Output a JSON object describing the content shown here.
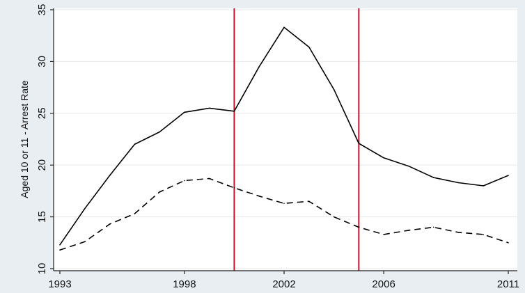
{
  "chart_data": {
    "type": "line",
    "title": "",
    "xlabel": "",
    "ylabel": "Aged 10 or 11 - Arrest Rate",
    "xlim": [
      1993,
      2011
    ],
    "ylim": [
      10,
      35
    ],
    "x_ticks": [
      1993,
      1998,
      2002,
      2006,
      2011
    ],
    "y_ticks": [
      10,
      15,
      20,
      25,
      30,
      35
    ],
    "x_tick_labels": [
      "1993",
      "1998",
      "2002",
      "2006",
      "2011"
    ],
    "y_tick_labels": [
      "10",
      "15",
      "20",
      "25",
      "30",
      "35"
    ],
    "grid": true,
    "legend": "none",
    "vertical_lines": [
      {
        "x": 2000,
        "color": "#c8102e"
      },
      {
        "x": 2005,
        "color": "#c8102e"
      }
    ],
    "x": [
      1993,
      1994,
      1995,
      1996,
      1997,
      1998,
      1999,
      2000,
      2001,
      2002,
      2003,
      2004,
      2005,
      2006,
      2007,
      2008,
      2009,
      2010,
      2011
    ],
    "series": [
      {
        "style": "solid",
        "color": "#000000",
        "values": [
          12.3,
          15.8,
          19.0,
          22.0,
          23.2,
          25.1,
          25.5,
          25.2,
          29.5,
          33.3,
          31.4,
          27.3,
          22.1,
          20.7,
          19.9,
          18.8,
          18.3,
          18.0,
          19.0
        ]
      },
      {
        "style": "dashed",
        "color": "#000000",
        "values": [
          11.8,
          12.6,
          14.3,
          15.3,
          17.4,
          18.5,
          18.7,
          17.8,
          17.0,
          16.3,
          16.5,
          15.0,
          14.0,
          13.3,
          13.7,
          14.0,
          13.5,
          13.3,
          12.5
        ]
      }
    ]
  }
}
